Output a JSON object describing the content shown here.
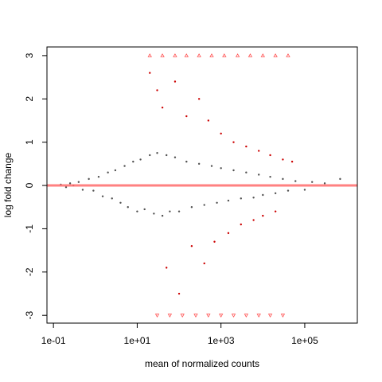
{
  "chart_data": {
    "type": "scatter",
    "title": "",
    "xlabel": "mean of normalized counts",
    "ylabel": "log fold change",
    "x_scale": "log10",
    "xlim": [
      0.07,
      1800000
    ],
    "ylim": [
      -3.18,
      3.2
    ],
    "x_ticks": [
      {
        "value": 0.1,
        "label": "1e-01"
      },
      {
        "value": 10,
        "label": "1e+01"
      },
      {
        "value": 1000,
        "label": "1e+03"
      },
      {
        "value": 100000,
        "label": "1e+05"
      }
    ],
    "y_ticks": [
      {
        "value": -3,
        "label": "-3"
      },
      {
        "value": -2,
        "label": "-2"
      },
      {
        "value": -1,
        "label": "-1"
      },
      {
        "value": 0,
        "label": "0"
      },
      {
        "value": 1,
        "label": "1"
      },
      {
        "value": 2,
        "label": "2"
      },
      {
        "value": 3,
        "label": "3"
      }
    ],
    "reference_line": {
      "y": 0,
      "color": "#ff6b6b"
    },
    "clip_bounds": [
      -3,
      3
    ],
    "series": [
      {
        "color": "#505050",
        "marker": "point"
      },
      {
        "color": "#cc0000",
        "marker": "point"
      },
      {
        "color": "#ff5050",
        "marker": "triangle-up"
      },
      {
        "color": "#ff5050",
        "marker": "triangle-down"
      }
    ],
    "points": {
      "non_significant": [
        [
          0.15,
          0.02
        ],
        [
          0.2,
          -0.04
        ],
        [
          0.25,
          0.05
        ],
        [
          0.3,
          0.0
        ],
        [
          0.4,
          0.08
        ],
        [
          0.5,
          -0.1
        ],
        [
          0.7,
          0.15
        ],
        [
          0.9,
          -0.12
        ],
        [
          1.2,
          0.2
        ],
        [
          1.5,
          -0.25
        ],
        [
          2,
          0.3
        ],
        [
          2.5,
          -0.3
        ],
        [
          3,
          0.35
        ],
        [
          4,
          -0.4
        ],
        [
          5,
          0.45
        ],
        [
          6,
          -0.5
        ],
        [
          8,
          0.55
        ],
        [
          10,
          -0.6
        ],
        [
          12,
          0.6
        ],
        [
          15,
          -0.55
        ],
        [
          20,
          0.7
        ],
        [
          25,
          -0.65
        ],
        [
          30,
          0.75
        ],
        [
          40,
          -0.7
        ],
        [
          50,
          0.7
        ],
        [
          60,
          -0.6
        ],
        [
          80,
          0.65
        ],
        [
          100,
          -0.6
        ],
        [
          150,
          0.55
        ],
        [
          200,
          -0.5
        ],
        [
          300,
          0.5
        ],
        [
          400,
          -0.45
        ],
        [
          600,
          0.45
        ],
        [
          800,
          -0.4
        ],
        [
          1000,
          0.4
        ],
        [
          1500,
          -0.35
        ],
        [
          2000,
          0.35
        ],
        [
          3000,
          -0.3
        ],
        [
          4000,
          0.3
        ],
        [
          6000,
          -0.28
        ],
        [
          8000,
          0.25
        ],
        [
          10000,
          -0.22
        ],
        [
          15000,
          0.2
        ],
        [
          20000,
          -0.18
        ],
        [
          30000,
          0.15
        ],
        [
          40000,
          -0.12
        ],
        [
          60000,
          0.1
        ],
        [
          100000,
          -0.1
        ],
        [
          150000,
          0.08
        ],
        [
          300000,
          0.05
        ],
        [
          700000,
          0.15
        ]
      ],
      "significant": [
        [
          20,
          2.6
        ],
        [
          30,
          2.2
        ],
        [
          40,
          1.8
        ],
        [
          50,
          -1.9
        ],
        [
          80,
          2.4
        ],
        [
          100,
          -2.5
        ],
        [
          150,
          1.6
        ],
        [
          200,
          -1.4
        ],
        [
          300,
          2.0
        ],
        [
          400,
          -1.8
        ],
        [
          500,
          1.5
        ],
        [
          700,
          -1.3
        ],
        [
          1000,
          1.2
        ],
        [
          1500,
          -1.1
        ],
        [
          2000,
          1.0
        ],
        [
          3000,
          -0.9
        ],
        [
          4000,
          0.9
        ],
        [
          6000,
          -0.8
        ],
        [
          8000,
          0.8
        ],
        [
          10000,
          -0.7
        ],
        [
          15000,
          0.7
        ],
        [
          20000,
          -0.6
        ],
        [
          30000,
          0.6
        ],
        [
          50000,
          0.55
        ]
      ],
      "clipped_high": [
        20,
        40,
        80,
        150,
        300,
        600,
        1200,
        2500,
        5000,
        10000,
        20000,
        40000
      ],
      "clipped_low": [
        30,
        60,
        120,
        250,
        500,
        1000,
        2000,
        4000,
        8000,
        15000,
        30000
      ]
    }
  }
}
